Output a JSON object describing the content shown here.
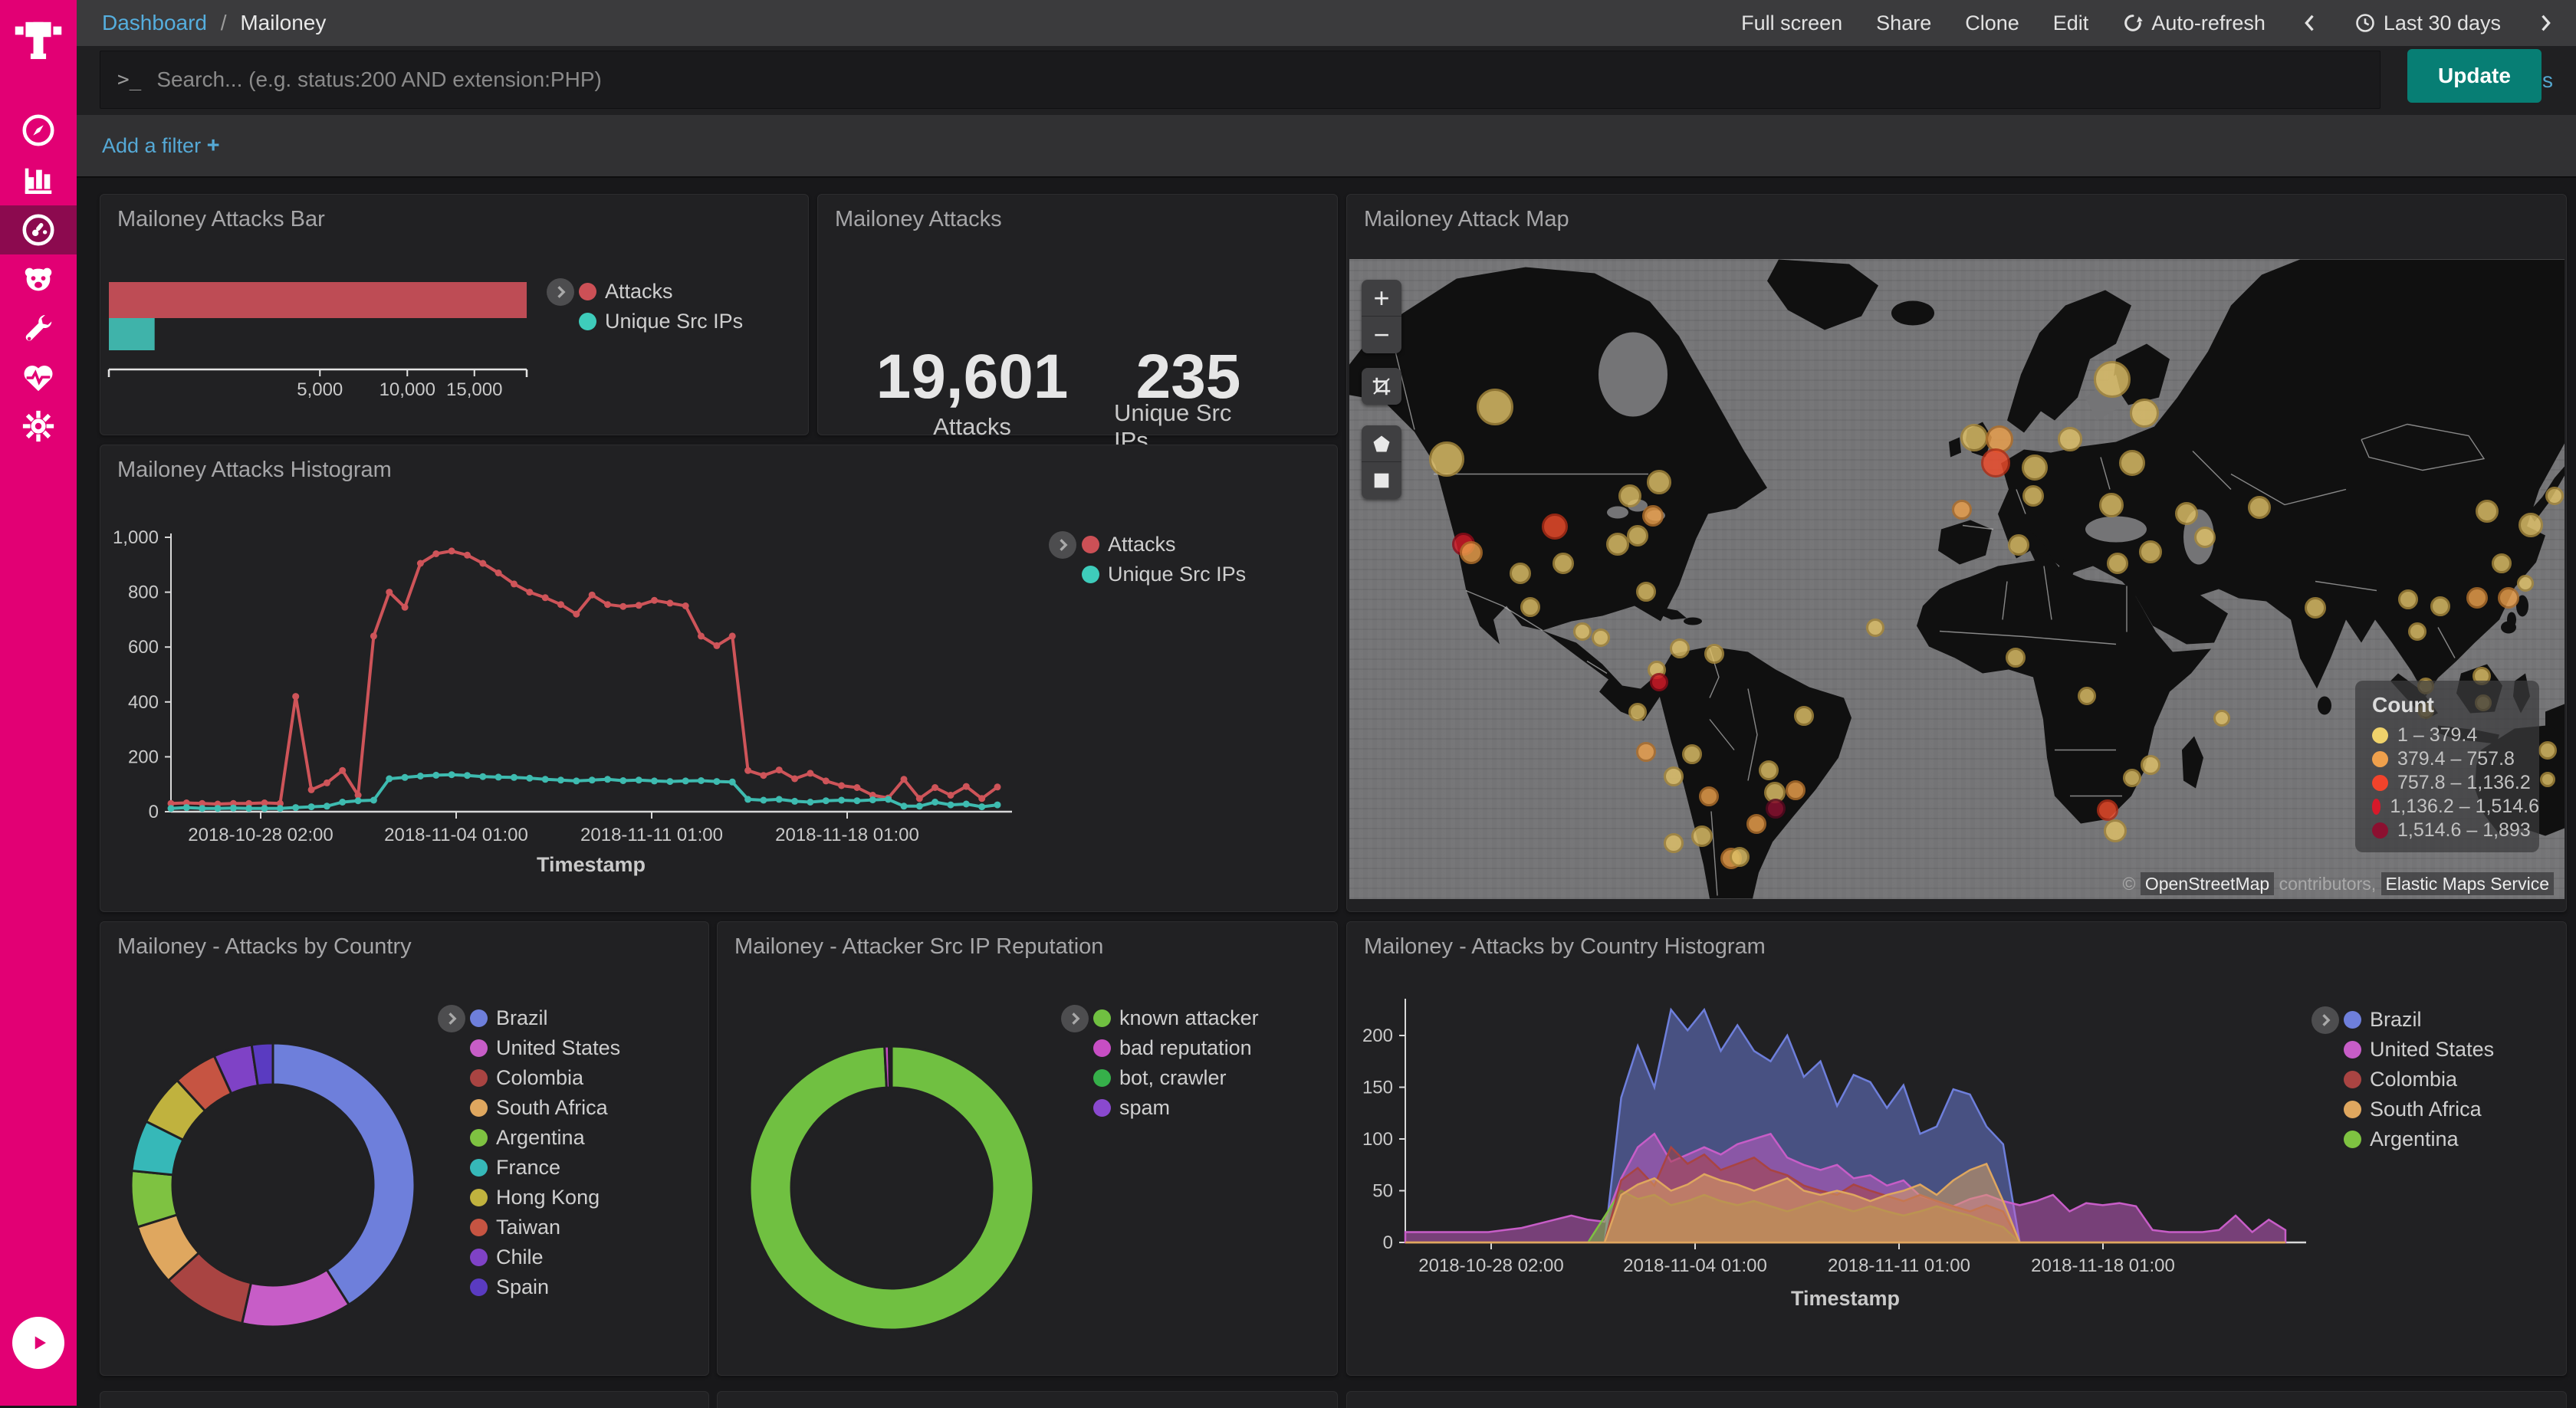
{
  "sidebar": {
    "items": [
      {
        "name": "discover",
        "icon": "compass-icon"
      },
      {
        "name": "visualize",
        "icon": "bar-chart-icon"
      },
      {
        "name": "dashboard",
        "icon": "gauge-icon",
        "active": true
      },
      {
        "name": "timelion",
        "icon": "bear-face-icon"
      },
      {
        "name": "dev-tools",
        "icon": "wrench-icon"
      },
      {
        "name": "monitoring",
        "icon": "heartbeat-icon"
      },
      {
        "name": "management",
        "icon": "gear-icon"
      }
    ]
  },
  "header": {
    "breadcrumb": {
      "root": "Dashboard",
      "separator": "/",
      "current": "Mailoney"
    },
    "actions": {
      "full_screen": "Full screen",
      "share": "Share",
      "clone": "Clone",
      "edit": "Edit",
      "auto_refresh": "Auto-refresh",
      "time_range": "Last 30 days"
    }
  },
  "query_bar": {
    "prompt": ">_",
    "placeholder": "Search... (e.g. status:200 AND extension:PHP)",
    "options_label": "Options",
    "update_label": "Update",
    "update_color": "#077E74"
  },
  "filter_bar": {
    "add_filter_label": "Add a filter",
    "plus": "+"
  },
  "panels": {
    "bar": {
      "title": "Mailoney Attacks Bar"
    },
    "metric": {
      "title": "Mailoney Attacks"
    },
    "map": {
      "title": "Mailoney Attack Map"
    },
    "histogram": {
      "title": "Mailoney Attacks Histogram"
    },
    "country": {
      "title": "Mailoney - Attacks by Country"
    },
    "reputation": {
      "title": "Mailoney - Attacker Src IP Reputation"
    },
    "country_histogram": {
      "title": "Mailoney - Attacks by Country Histogram"
    }
  },
  "chart_data": [
    {
      "id": "attacks-bar",
      "type": "bar",
      "orientation": "horizontal",
      "scale": "square-root",
      "max": 19601,
      "series": [
        {
          "name": "Attacks",
          "value": 19601,
          "color": "#BE4C55"
        },
        {
          "name": "Unique Src IPs",
          "value": 235,
          "color": "#3FB3AA"
        }
      ],
      "x_ticks": [
        5000,
        10000,
        15000
      ],
      "x_tick_labels": [
        "5,000",
        "10,000",
        "15,000"
      ],
      "legend": [
        {
          "label": "Attacks",
          "color": "#CC5056"
        },
        {
          "label": "Unique Src IPs",
          "color": "#3ECCBB"
        }
      ]
    },
    {
      "id": "attacks-metric",
      "type": "metric",
      "values": [
        {
          "value": "19,601",
          "label": "Attacks"
        },
        {
          "value": "235",
          "label": "Unique Src IPs"
        }
      ]
    },
    {
      "id": "attacks-histogram",
      "type": "line",
      "title": "Mailoney Attacks Histogram",
      "xlabel": "Timestamp",
      "ylabel": "",
      "ylim": [
        0,
        1000
      ],
      "y_tick_labels": [
        "0",
        "200",
        "400",
        "600",
        "800",
        "1,000"
      ],
      "x_tick_labels": [
        "2018-10-28 02:00",
        "2018-11-04 01:00",
        "2018-11-11 01:00",
        "2018-11-18 01:00"
      ],
      "legend": [
        {
          "label": "Attacks",
          "color": "#CC5056"
        },
        {
          "label": "Unique Src IPs",
          "color": "#3ECCBB"
        }
      ],
      "series": [
        {
          "name": "Attacks",
          "color": "#CE5459",
          "values": [
            30,
            32,
            30,
            28,
            30,
            30,
            32,
            30,
            420,
            80,
            105,
            150,
            60,
            640,
            800,
            745,
            905,
            940,
            950,
            935,
            905,
            870,
            830,
            800,
            780,
            755,
            720,
            790,
            755,
            748,
            752,
            770,
            760,
            750,
            640,
            605,
            640,
            150,
            132,
            152,
            120,
            140,
            112,
            95,
            88,
            60,
            50,
            118,
            48,
            88,
            60,
            92,
            48,
            90
          ]
        },
        {
          "name": "Unique Src IPs",
          "color": "#3EBBB0",
          "values": [
            12,
            15,
            12,
            12,
            13,
            12,
            12,
            12,
            15,
            18,
            20,
            35,
            40,
            42,
            120,
            125,
            130,
            133,
            135,
            132,
            128,
            126,
            125,
            122,
            118,
            115,
            112,
            115,
            118,
            113,
            115,
            112,
            110,
            112,
            113,
            110,
            108,
            45,
            42,
            45,
            38,
            35,
            40,
            42,
            40,
            43,
            45,
            20,
            20,
            35,
            25,
            28,
            18,
            25
          ]
        }
      ]
    },
    {
      "id": "attack-map",
      "type": "map",
      "basemap": "world-dark",
      "legend_title": "Count",
      "legend": [
        {
          "label": "1 – 379.4",
          "color": "#EFD26B"
        },
        {
          "label": "379.4 – 757.8",
          "color": "#EFA04C"
        },
        {
          "label": "757.8 – 1,136.2",
          "color": "#F2432B"
        },
        {
          "label": "1,136.2 – 1,514.6",
          "color": "#D6192A"
        },
        {
          "label": "1,514.6 – 1,893",
          "color": "#8C1030"
        }
      ],
      "attribution": {
        "copyright": "©",
        "osm": "OpenStreetMap",
        "contributors": "contributors,",
        "ems": "Elastic Maps Service"
      },
      "bubbles": [
        [
          12.0,
          23.1,
          24,
          1
        ],
        [
          8.0,
          31.3,
          23,
          1
        ],
        [
          16.9,
          41.8,
          17,
          3
        ],
        [
          9.4,
          44.5,
          15,
          4
        ],
        [
          10.0,
          45.9,
          15,
          2
        ],
        [
          17.6,
          47.5,
          14,
          1
        ],
        [
          14.1,
          49.1,
          14,
          1
        ],
        [
          14.9,
          54.4,
          13,
          1
        ],
        [
          23.1,
          37.0,
          15,
          1
        ],
        [
          25.5,
          34.8,
          16,
          1
        ],
        [
          25.0,
          40.1,
          14,
          2
        ],
        [
          23.7,
          43.2,
          14,
          1
        ],
        [
          22.1,
          44.6,
          15,
          1
        ],
        [
          24.4,
          52.0,
          13,
          1
        ],
        [
          19.2,
          58.2,
          12,
          1
        ],
        [
          20.7,
          59.2,
          12,
          1
        ],
        [
          27.2,
          60.8,
          13,
          1
        ],
        [
          30.0,
          61.7,
          13,
          1
        ],
        [
          25.3,
          64.2,
          12,
          1
        ],
        [
          25.5,
          66.1,
          12,
          4
        ],
        [
          23.7,
          70.8,
          12,
          1
        ],
        [
          24.4,
          77.0,
          13,
          2
        ],
        [
          37.4,
          71.4,
          13,
          1
        ],
        [
          28.2,
          77.4,
          13,
          1
        ],
        [
          26.7,
          80.8,
          13,
          1
        ],
        [
          29.6,
          83.9,
          13,
          2
        ],
        [
          34.5,
          79.9,
          13,
          1
        ],
        [
          35.0,
          83.3,
          14,
          1
        ],
        [
          36.7,
          83.0,
          13,
          2
        ],
        [
          35.1,
          85.9,
          13,
          5
        ],
        [
          33.5,
          88.3,
          13,
          2
        ],
        [
          29.0,
          90.2,
          14,
          1
        ],
        [
          26.7,
          91.2,
          13,
          1
        ],
        [
          31.4,
          93.6,
          14,
          2
        ],
        [
          32.1,
          93.4,
          13,
          1
        ],
        [
          43.3,
          57.6,
          12,
          1
        ],
        [
          51.4,
          27.9,
          18,
          1
        ],
        [
          53.5,
          28.1,
          18,
          2
        ],
        [
          53.2,
          31.9,
          19,
          3
        ],
        [
          59.3,
          28.1,
          16,
          1
        ],
        [
          56.4,
          32.6,
          17,
          1
        ],
        [
          56.3,
          37.0,
          14,
          1
        ],
        [
          62.8,
          18.8,
          24,
          1
        ],
        [
          65.4,
          24.1,
          19,
          1
        ],
        [
          64.4,
          31.9,
          17,
          1
        ],
        [
          62.7,
          38.5,
          16,
          1
        ],
        [
          68.9,
          39.8,
          15,
          1
        ],
        [
          70.4,
          43.5,
          14,
          1
        ],
        [
          65.9,
          45.7,
          15,
          1
        ],
        [
          63.2,
          47.5,
          14,
          1
        ],
        [
          55.1,
          44.7,
          14,
          1
        ],
        [
          50.4,
          39.2,
          13,
          2
        ],
        [
          74.9,
          38.8,
          15,
          1
        ],
        [
          54.8,
          62.3,
          13,
          1
        ],
        [
          60.7,
          68.3,
          12,
          1
        ],
        [
          71.8,
          71.7,
          11,
          1
        ],
        [
          65.9,
          79.0,
          13,
          1
        ],
        [
          64.4,
          81.1,
          12,
          1
        ],
        [
          62.4,
          86.1,
          14,
          3
        ],
        [
          63.0,
          89.3,
          15,
          1
        ],
        [
          79.5,
          54.5,
          14,
          1
        ],
        [
          87.1,
          53.2,
          13,
          1
        ],
        [
          89.8,
          54.2,
          13,
          1
        ],
        [
          87.9,
          58.2,
          12,
          1
        ],
        [
          92.8,
          52.9,
          14,
          2
        ],
        [
          95.4,
          52.9,
          14,
          2
        ],
        [
          94.8,
          47.5,
          13,
          1
        ],
        [
          93.6,
          39.4,
          15,
          1
        ],
        [
          97.2,
          41.6,
          16,
          1
        ],
        [
          88.6,
          66.7,
          11,
          1
        ],
        [
          93.2,
          65.1,
          12,
          1
        ],
        [
          98.6,
          76.8,
          12,
          1
        ],
        [
          88.6,
          70.5,
          11,
          1
        ],
        [
          93.3,
          69.3,
          11,
          1
        ],
        [
          98.6,
          81.3,
          10,
          1
        ],
        [
          99.2,
          37.0,
          12,
          1
        ],
        [
          96.8,
          50.6,
          11,
          1
        ]
      ],
      "bubble_colors": {
        "1": [
          "#E0C168",
          "#A8893B"
        ],
        "2": [
          "#ECA04C",
          "#B06F2A"
        ],
        "3": [
          "#EF4C2B",
          "#B02D16"
        ],
        "4": [
          "#D61A28",
          "#8E0A18"
        ],
        "5": [
          "#8C1030",
          "#56081F"
        ]
      }
    },
    {
      "id": "country-donut",
      "type": "pie",
      "donut": true,
      "labels": [
        "Brazil",
        "United States",
        "Colombia",
        "South Africa",
        "Argentina",
        "France",
        "Hong Kong",
        "Taiwan",
        "Chile",
        "Spain"
      ],
      "values": [
        41,
        12.5,
        9.7,
        7,
        6.4,
        5.8,
        5.8,
        5,
        4.4,
        2.4
      ],
      "colors": [
        "#6E7FDB",
        "#C75DC7",
        "#A94442",
        "#DFA75F",
        "#7EC241",
        "#36B8B8",
        "#C0B23E",
        "#C65442",
        "#7F42C6",
        "#5A3BC1"
      ]
    },
    {
      "id": "reputation-donut",
      "type": "pie",
      "donut": true,
      "labels": [
        "known attacker",
        "bad reputation",
        "bot, crawler",
        "spam"
      ],
      "values": [
        99.2,
        0.5,
        0.2,
        0.1
      ],
      "colors": [
        "#70C041",
        "#C74EC4",
        "#36B04A",
        "#8A49CF"
      ]
    },
    {
      "id": "country-histogram",
      "type": "area",
      "title": "Mailoney - Attacks by Country Histogram",
      "xlabel": "Timestamp",
      "ylim": [
        0,
        200
      ],
      "y_tick_labels": [
        "0",
        "50",
        "100",
        "150",
        "200"
      ],
      "x_tick_labels": [
        "2018-10-28 02:00",
        "2018-11-04 01:00",
        "2018-11-11 01:00",
        "2018-11-18 01:00"
      ],
      "legend": [
        {
          "label": "Brazil",
          "color": "#6E7FDB"
        },
        {
          "label": "United States",
          "color": "#C75DC7"
        },
        {
          "label": "Colombia",
          "color": "#A94442"
        },
        {
          "label": "South Africa",
          "color": "#DFA75F"
        },
        {
          "label": "Argentina",
          "color": "#7EC241"
        }
      ],
      "series": [
        {
          "name": "Brazil",
          "color": "#6E7FDB",
          "values": [
            0,
            0,
            0,
            0,
            0,
            0,
            0,
            0,
            0,
            0,
            0,
            0,
            0,
            140,
            190,
            150,
            225,
            205,
            225,
            185,
            210,
            185,
            175,
            200,
            160,
            175,
            132,
            162,
            155,
            130,
            152,
            105,
            112,
            148,
            143,
            112,
            95,
            0,
            0,
            0,
            0,
            0,
            0,
            0,
            0,
            0,
            0,
            0,
            0,
            0,
            0,
            0,
            0,
            0
          ]
        },
        {
          "name": "United States",
          "color": "#C75DC7",
          "values": [
            10,
            10,
            10,
            10,
            10,
            10,
            12,
            14,
            18,
            22,
            26,
            22,
            20,
            62,
            92,
            105,
            78,
            85,
            92,
            85,
            95,
            100,
            105,
            82,
            75,
            70,
            75,
            62,
            65,
            55,
            60,
            45,
            40,
            35,
            42,
            46,
            40,
            36,
            40,
            46,
            30,
            38,
            36,
            38,
            35,
            12,
            10,
            10,
            10,
            12,
            26,
            10,
            22,
            12
          ]
        },
        {
          "name": "Colombia",
          "color": "#A94442",
          "values": [
            0,
            0,
            0,
            0,
            0,
            0,
            0,
            0,
            0,
            0,
            0,
            0,
            0,
            60,
            72,
            55,
            92,
            76,
            85,
            70,
            76,
            82,
            70,
            65,
            55,
            50,
            46,
            56,
            50,
            45,
            40,
            46,
            40,
            35,
            30,
            36,
            30,
            0,
            0,
            0,
            0,
            0,
            0,
            0,
            0,
            0,
            0,
            0,
            0,
            0,
            0,
            0,
            0,
            0
          ]
        },
        {
          "name": "South Africa",
          "color": "#DFA75F",
          "values": [
            0,
            0,
            0,
            0,
            0,
            0,
            0,
            0,
            0,
            0,
            0,
            0,
            0,
            46,
            56,
            62,
            50,
            56,
            66,
            60,
            56,
            50,
            56,
            62,
            50,
            46,
            50,
            46,
            40,
            46,
            50,
            56,
            46,
            60,
            70,
            76,
            40,
            0,
            0,
            0,
            0,
            0,
            0,
            0,
            0,
            0,
            0,
            0,
            0,
            0,
            0,
            0,
            0,
            0
          ]
        },
        {
          "name": "Argentina",
          "color": "#7EC241",
          "values": [
            0,
            0,
            0,
            0,
            0,
            0,
            0,
            0,
            0,
            0,
            0,
            0,
            25,
            50,
            42,
            46,
            36,
            40,
            46,
            40,
            36,
            40,
            35,
            30,
            35,
            40,
            35,
            30,
            35,
            30,
            26,
            30,
            35,
            30,
            26,
            20,
            15,
            0,
            0,
            0,
            0,
            0,
            0,
            0,
            0,
            0,
            0,
            0,
            0,
            0,
            0,
            0,
            0,
            0
          ]
        }
      ]
    }
  ]
}
